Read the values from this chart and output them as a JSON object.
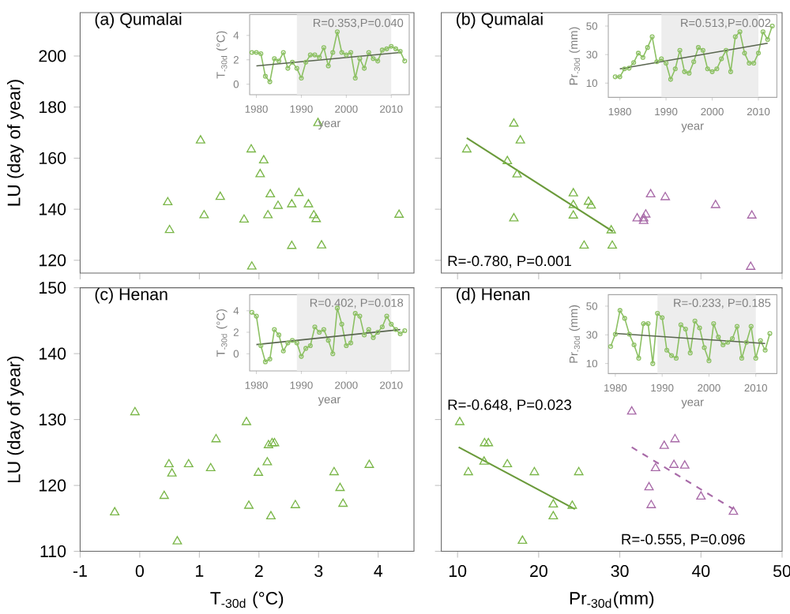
{
  "chart_data": [
    {
      "type": "scatter",
      "title": "(a) Qumalai",
      "ylabel": "LU (day of year)",
      "xlim": [
        -1,
        4.6
      ],
      "ylim": [
        115,
        217
      ],
      "xticks": [
        -1,
        0,
        1,
        2,
        3,
        4
      ],
      "yticks": [
        120,
        140,
        160,
        180,
        200
      ],
      "tick_labels": "y",
      "series": [
        {
          "color": "#7ab648",
          "marker": "triangle",
          "x": [
            0.47,
            0.5,
            1.02,
            1.08,
            1.35,
            1.75,
            1.87,
            1.88,
            2.08,
            2.02,
            2.19,
            2.15,
            2.32,
            2.55,
            2.67,
            2.55,
            2.83,
            2.92,
            2.96,
            3.05,
            2.99,
            4.35
          ],
          "values": [
            142.7,
            131.8,
            166.9,
            137.6,
            144.8,
            135.9,
            163.4,
            117.5,
            159.1,
            153.7,
            145.8,
            137.6,
            141.3,
            141.9,
            146.3,
            125.6,
            141.9,
            137.6,
            136.1,
            125.8,
            173.7,
            137.8
          ]
        }
      ]
    },
    {
      "type": "line",
      "ylabel": "T$_{-30d}$ (°C)",
      "xlabel": "year",
      "xlim": [
        1978.5,
        2014
      ],
      "ylim": [
        -0.86,
        5.7
      ],
      "xticks": [
        1980,
        1990,
        2000,
        2010
      ],
      "yticks": [
        0,
        2,
        4
      ],
      "annotations": [
        "R=0.353,P=0.040"
      ],
      "bands": [
        {
          "axis": "x",
          "from": 1989,
          "to": 2010,
          "color": "#ededed"
        }
      ],
      "series": [
        {
          "color": "#8cc063",
          "marker": "circle",
          "x": [
            1979,
            1980,
            1981,
            1982,
            1983,
            1984,
            1985,
            1986,
            1987,
            1988,
            1989,
            1990,
            1991,
            1992,
            1993,
            1994,
            1995,
            1996,
            1997,
            1998,
            1999,
            2000,
            2001,
            2002,
            2003,
            2004,
            2005,
            2006,
            2007,
            2008,
            2009,
            2010,
            2011,
            2012,
            2013
          ],
          "values": [
            2.6,
            2.6,
            2.5,
            0.65,
            0.2,
            2.1,
            1.9,
            2.6,
            1.3,
            1.8,
            1.3,
            0.5,
            1.8,
            2.4,
            2.4,
            2.2,
            3.0,
            1.5,
            2.6,
            4.3,
            2.6,
            2.4,
            2.6,
            0.5,
            2.1,
            1.3,
            2.6,
            2.1,
            1.9,
            2.8,
            2.9,
            3.1,
            2.9,
            2.7,
            1.9
          ]
        },
        {
          "color": "#5a6650",
          "marker": "none",
          "x": [
            1980,
            2012
          ],
          "values": [
            1.5,
            2.6
          ]
        }
      ]
    },
    {
      "type": "scatter",
      "title": "(b) Qumalai",
      "xlim": [
        8,
        50
      ],
      "ylim": [
        115,
        217
      ],
      "xticks": [
        10,
        20,
        30,
        40,
        50
      ],
      "yticks": [
        120,
        140,
        160,
        180,
        200
      ],
      "tick_labels": false,
      "annotations": [
        "R=-0.780, P=0.001"
      ],
      "series": [
        {
          "color": "#7ab648",
          "marker": "triangle",
          "x": [
            11.14,
            16.94,
            17.74,
            16.14,
            17.34,
            16.94,
            24.27,
            24.27,
            26.14,
            26.47,
            24.27,
            25.6,
            28.94,
            29.07
          ],
          "values": [
            163.4,
            173.5,
            166.9,
            158.8,
            153.6,
            136.4,
            146.2,
            141.6,
            142.9,
            141.4,
            137.5,
            125.7,
            131.7,
            125.7
          ]
        },
        {
          "color": "#a86aa8",
          "marker": "triangle",
          "x": [
            32.14,
            32.94,
            33.2,
            32.94,
            33.8,
            35.6,
            41.8,
            46.27,
            46.13
          ],
          "values": [
            136.4,
            136.4,
            137.9,
            135.4,
            145.8,
            144.7,
            141.6,
            137.5,
            117.4
          ]
        },
        {
          "type": "line",
          "color": "#6a9a3a",
          "marker": "none",
          "x": [
            11.14,
            29.14
          ],
          "values": [
            167.9,
            131.3
          ]
        }
      ]
    },
    {
      "type": "line",
      "ylabel": "Pr$_{-30d}$ (mm)",
      "xlabel": "year",
      "xlim": [
        1977.5,
        2014
      ],
      "ylim": [
        0,
        58
      ],
      "xticks": [
        1980,
        1990,
        2000,
        2010
      ],
      "yticks": [
        10,
        30,
        50
      ],
      "annotations": [
        "R=0.513,P=0.002"
      ],
      "bands": [
        {
          "axis": "x",
          "from": 1989,
          "to": 2010,
          "color": "#ededed"
        }
      ],
      "series": [
        {
          "color": "#8cc063",
          "marker": "circle",
          "x": [
            1979,
            1980,
            1981,
            1982,
            1983,
            1984,
            1985,
            1986,
            1987,
            1988,
            1989,
            1990,
            1991,
            1992,
            1993,
            1994,
            1995,
            1996,
            1997,
            1998,
            1999,
            2000,
            2001,
            2002,
            2003,
            2004,
            2005,
            2006,
            2007,
            2008,
            2009,
            2010,
            2011,
            2012,
            2013
          ],
          "values": [
            14.4,
            14.4,
            20,
            20.5,
            24.4,
            31,
            28,
            35,
            42.5,
            25,
            27,
            24,
            12.6,
            20,
            33,
            18,
            17,
            25,
            35,
            33,
            20,
            18,
            20,
            27,
            33,
            18,
            42.5,
            46,
            31,
            24,
            24,
            31,
            46,
            40.6,
            50
          ]
        },
        {
          "color": "#5a6650",
          "marker": "none",
          "x": [
            1980,
            2012
          ],
          "values": [
            20,
            38
          ]
        }
      ]
    },
    {
      "type": "scatter",
      "title": "(c) Henan",
      "ylabel": "LU (day of year)",
      "xlabel": "T$_{-30d}$ (°C)",
      "xlim": [
        -1,
        4.6
      ],
      "ylim": [
        110,
        150
      ],
      "xticks": [
        -1,
        0,
        1,
        2,
        3,
        4
      ],
      "yticks": [
        110,
        120,
        130,
        140,
        150
      ],
      "series": [
        {
          "color": "#7ab648",
          "marker": "triangle",
          "x": [
            -0.42,
            -0.08,
            0.41,
            0.49,
            0.54,
            0.63,
            0.82,
            1.19,
            1.28,
            1.79,
            1.83,
            1.99,
            2.14,
            2.16,
            2.22,
            2.26,
            2.2,
            2.61,
            3.26,
            3.36,
            3.41,
            3.85
          ],
          "values": [
            115.9,
            131.1,
            118.4,
            123.2,
            121.8,
            111.5,
            123.2,
            122.6,
            127.0,
            129.6,
            116.9,
            121.9,
            123.5,
            126.1,
            126.4,
            126.4,
            115.3,
            117.0,
            122.0,
            119.6,
            117.2,
            123.1
          ]
        }
      ]
    },
    {
      "type": "line",
      "ylabel": "T$_{-30d}$ (°C)",
      "xlabel": "year",
      "xlim": [
        1978.5,
        2014
      ],
      "ylim": [
        -1.6,
        5.5
      ],
      "xticks": [
        1980,
        1990,
        2000,
        2010
      ],
      "yticks": [
        0,
        2,
        4
      ],
      "annotations": [
        "R=0.402, P=0.018"
      ],
      "bands": [
        {
          "axis": "x",
          "from": 1989,
          "to": 2010,
          "color": "#ededed"
        }
      ],
      "series": [
        {
          "color": "#8cc063",
          "marker": "circle",
          "x": [
            1979,
            1980,
            1981,
            1982,
            1983,
            1984,
            1985,
            1986,
            1987,
            1988,
            1989,
            1990,
            1991,
            1992,
            1993,
            1994,
            1995,
            1996,
            1997,
            1998,
            1999,
            2000,
            2001,
            2002,
            2003,
            2004,
            2005,
            2006,
            2007,
            2008,
            2009,
            2010,
            2011,
            2012,
            2013
          ],
          "values": [
            3.85,
            3.5,
            0.75,
            -0.75,
            -0.5,
            2.25,
            1.75,
            0.25,
            1.0,
            1.25,
            1.0,
            -0.25,
            0.5,
            0.75,
            2.5,
            2.0,
            2.25,
            1.25,
            0,
            4.25,
            2.75,
            0.75,
            1.0,
            3.75,
            3.5,
            1.75,
            2.25,
            1.5,
            2.0,
            2.5,
            3.5,
            2.75,
            2.25,
            1.85,
            2.15
          ]
        },
        {
          "color": "#5a6650",
          "marker": "none",
          "x": [
            1980,
            2012
          ],
          "values": [
            0.85,
            2.25
          ]
        }
      ]
    },
    {
      "type": "scatter",
      "title": "(d) Henan",
      "xlabel": "Pr$_{-30d}$(mm)",
      "xlim": [
        8,
        50
      ],
      "ylim": [
        110,
        150
      ],
      "xticks": [
        10,
        20,
        30,
        40,
        50
      ],
      "yticks": [
        110,
        120,
        130,
        140,
        150
      ],
      "tick_labels": "x",
      "annotations": [
        "R=-0.648, P=0.023",
        "R=-0.555, P=0.096"
      ],
      "series": [
        {
          "color": "#7ab648",
          "marker": "triangle",
          "x": [
            10.27,
            11.33,
            13.27,
            13.33,
            13.8,
            16.14,
            19.47,
            18.0,
            21.8,
            21.8,
            24.14,
            24.94
          ],
          "values": [
            129.6,
            122.0,
            123.6,
            126.4,
            126.4,
            123.2,
            122.0,
            111.6,
            117.1,
            115.3,
            116.9,
            122.0
          ]
        },
        {
          "color": "#a86aa8",
          "marker": "triangle",
          "x": [
            31.47,
            33.6,
            33.87,
            34.4,
            35.47,
            36.8,
            36.67,
            38.0,
            40.0,
            44.0
          ],
          "values": [
            131.2,
            119.7,
            117.0,
            122.6,
            126.0,
            127.0,
            123.1,
            123.0,
            118.3,
            116.0
          ]
        },
        {
          "type": "line",
          "color": "#6a9a3a",
          "marker": "none",
          "x": [
            10.14,
            24.47
          ],
          "values": [
            125.8,
            116.4
          ]
        },
        {
          "type": "line",
          "color": "#a86aa8",
          "marker": "none",
          "line_style": "dashed",
          "x": [
            31.47,
            44.0
          ],
          "values": [
            125.8,
            116.4
          ]
        }
      ]
    },
    {
      "type": "line",
      "ylabel": "Pr$_{-30d}$ (mm)",
      "xlabel": "year",
      "xlim": [
        1978.5,
        2014.5
      ],
      "ylim": [
        3,
        58
      ],
      "xticks": [
        1980,
        1990,
        2000,
        2010
      ],
      "yticks": [
        10,
        30,
        50
      ],
      "annotations": [
        "R=-0.233, P=0.185"
      ],
      "bands": [
        {
          "axis": "x",
          "from": 1989,
          "to": 2010,
          "color": "#ededed"
        }
      ],
      "series": [
        {
          "color": "#8cc063",
          "marker": "circle",
          "x": [
            1979,
            1980,
            1981,
            1982,
            1983,
            1984,
            1985,
            1986,
            1987,
            1988,
            1989,
            1990,
            1991,
            1992,
            1993,
            1994,
            1995,
            1996,
            1997,
            1998,
            1999,
            2000,
            2001,
            2002,
            2003,
            2004,
            2005,
            2006,
            2007,
            2008,
            2009,
            2010,
            2011,
            2012,
            2013
          ],
          "values": [
            21.9,
            30.4,
            47,
            41.5,
            30.4,
            23,
            13.7,
            37.8,
            37.8,
            10,
            45,
            42,
            19.3,
            15.6,
            13.7,
            37,
            34,
            17.4,
            39.6,
            34.8,
            21.1,
            11.9,
            37.8,
            28.5,
            23,
            24.8,
            27.4,
            35.9,
            13.7,
            24.8,
            35.9,
            13.7,
            26,
            19.3,
            31
          ]
        },
        {
          "color": "#5a6650",
          "marker": "none",
          "x": [
            1980,
            2012
          ],
          "values": [
            31,
            24
          ]
        }
      ]
    }
  ]
}
